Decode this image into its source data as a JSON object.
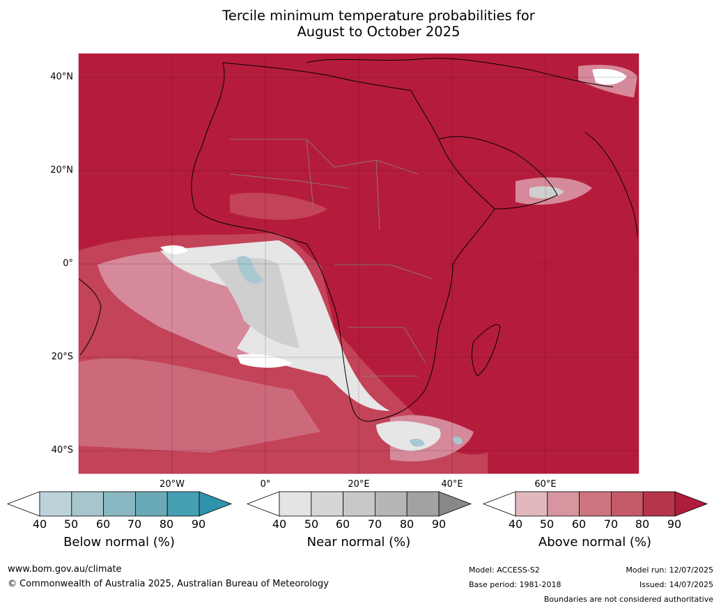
{
  "title_line1": "Tercile minimum temperature probabilities for",
  "title_line2": "August to October 2025",
  "lat_labels": [
    "40°N",
    "20°N",
    "0°",
    "20°S",
    "40°S"
  ],
  "lon_labels": [
    "20°W",
    "0°",
    "20°E",
    "40°E",
    "60°E"
  ],
  "colorbars": [
    {
      "id": "below",
      "title": "Below normal (%)",
      "ticks": [
        "40",
        "50",
        "60",
        "70",
        "80",
        "90"
      ],
      "colors": [
        "#ffffff",
        "#bcd3da",
        "#a6c6cc",
        "#8ab8c2",
        "#6aa9b8",
        "#459fb2",
        "#2e93ab"
      ]
    },
    {
      "id": "near",
      "title": "Near normal (%)",
      "ticks": [
        "40",
        "50",
        "60",
        "70",
        "80",
        "90"
      ],
      "colors": [
        "#ffffff",
        "#e4e4e4",
        "#d6d6d6",
        "#c8c8c8",
        "#b6b6b6",
        "#a2a2a2",
        "#888888"
      ]
    },
    {
      "id": "above",
      "title": "Above normal (%)",
      "ticks": [
        "40",
        "50",
        "60",
        "70",
        "80",
        "90"
      ],
      "colors": [
        "#ffffff",
        "#e0b8be",
        "#d6959f",
        "#cc7580",
        "#c35a68",
        "#b6354a",
        "#b01c3c"
      ]
    }
  ],
  "footer": {
    "url": "www.bom.gov.au/climate",
    "copyright": "© Commonwealth of Australia 2025, Australian Bureau of Meteorology",
    "model": "Model: ACCESS-S2",
    "base_period": "Base period: 1981-2018",
    "model_run": "Model run: 12/07/2025",
    "issued": "Issued: 14/07/2025",
    "disclaimer": "Boundaries are not considered authoritative"
  },
  "colors": {
    "above_dominant": "#b51c3c",
    "above_mid": "#c34358",
    "above_light": "#d6899a",
    "near_light": "#e6e6e6",
    "near_mid": "#cfcfcf",
    "below_light": "#a7c8d0"
  }
}
